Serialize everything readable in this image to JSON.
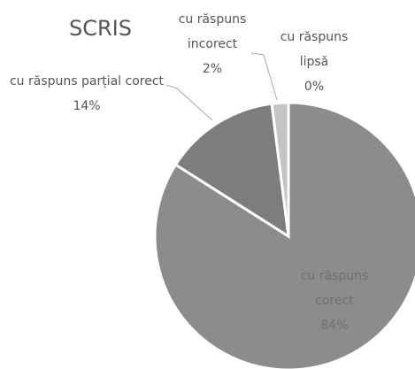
{
  "chart_data": {
    "type": "pie",
    "title": "SCRIS",
    "categories": [
      "cu răspuns corect",
      "cu răspuns parțial corect",
      "cu răspuns incorect",
      "cu răspuns lipsă"
    ],
    "values": [
      84,
      14,
      2,
      0
    ],
    "value_labels": [
      "84%",
      "14%",
      "2%",
      "0%"
    ],
    "colors": [
      "#8c8c8c",
      "#7d7d7d",
      "#c4c4c4",
      "#dcdcdc"
    ]
  }
}
